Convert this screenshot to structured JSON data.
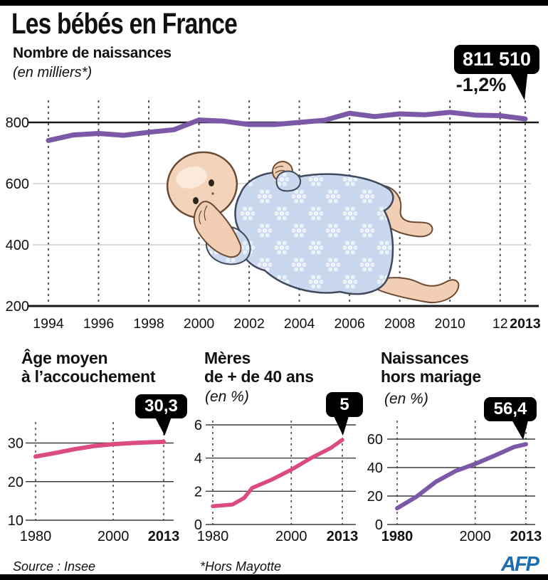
{
  "page": {
    "title": "Les bébés en France"
  },
  "colors": {
    "purple": "#7B59A6",
    "pink": "#DB4A80",
    "callout_bg": "#000000",
    "callout_text": "#FFFFFF",
    "afp_blue": "#1C6EB0"
  },
  "footer": {
    "source": "Source : Insee",
    "note": "*Hors Mayotte",
    "agency": "AFP"
  },
  "chart_data": [
    {
      "type": "line",
      "title": "Nombre de naissances",
      "subtitle": "(en milliers*)",
      "color": "#7B59A6",
      "grid": "vertical-dashed",
      "legend": "none",
      "x": [
        1994,
        1995,
        1996,
        1997,
        1998,
        1999,
        2000,
        2001,
        2002,
        2003,
        2004,
        2005,
        2006,
        2007,
        2008,
        2009,
        2010,
        2011,
        2012,
        2013
      ],
      "values": [
        741,
        759,
        764,
        758,
        768,
        776,
        808,
        804,
        793,
        793,
        800,
        807,
        830,
        819,
        828,
        825,
        833,
        824,
        822,
        811.5
      ],
      "ylim": [
        200,
        860
      ],
      "annotation": {
        "value": "811 510",
        "change": "-1,2%",
        "year": 2013
      },
      "y_ticks": [
        {
          "label": "200",
          "value": 200,
          "strong": true
        },
        {
          "label": "400",
          "value": 400,
          "strong": false
        },
        {
          "label": "600",
          "value": 600,
          "strong": false
        },
        {
          "label": "800",
          "value": 800,
          "strong": true
        }
      ],
      "x_ticks": [
        {
          "label": "1994",
          "year": 1994,
          "bold": false
        },
        {
          "label": "1996",
          "year": 1996,
          "bold": false
        },
        {
          "label": "1998",
          "year": 1998,
          "bold": false
        },
        {
          "label": "2000",
          "year": 2000,
          "bold": false
        },
        {
          "label": "2002",
          "year": 2002,
          "bold": false
        },
        {
          "label": "2004",
          "year": 2004,
          "bold": false
        },
        {
          "label": "2006",
          "year": 2006,
          "bold": false
        },
        {
          "label": "2008",
          "year": 2008,
          "bold": false
        },
        {
          "label": "2010",
          "year": 2010,
          "bold": false
        },
        {
          "label": "12",
          "year": 2012,
          "bold": false
        },
        {
          "label": "2013",
          "year": 2013,
          "bold": true
        }
      ]
    },
    {
      "type": "line",
      "title": "Âge moyen à l’accouchement",
      "title_lines": [
        "Âge moyen",
        "à l’accouchement"
      ],
      "subtitle": "",
      "color": "#DB4A80",
      "grid": "vertical-dashed",
      "callout": "30,3",
      "x": [
        1980,
        1985,
        1990,
        1995,
        2000,
        2005,
        2010,
        2013
      ],
      "values": [
        26.5,
        27.4,
        28.4,
        29.2,
        29.7,
        30.0,
        30.2,
        30.3
      ],
      "ylim": [
        10,
        33
      ],
      "y_ticks": [
        {
          "label": "10",
          "value": 10
        },
        {
          "label": "20",
          "value": 20
        },
        {
          "label": "30",
          "value": 30
        }
      ],
      "x_ticks": [
        {
          "label": "1980",
          "year": 1980,
          "bold": false
        },
        {
          "label": "2000",
          "year": 2000,
          "bold": false
        },
        {
          "label": "2013",
          "year": 2013,
          "bold": true
        }
      ]
    },
    {
      "type": "line",
      "title": "Mères de + de 40 ans (en %)",
      "title_lines": [
        "Mères",
        "de + de 40 ans"
      ],
      "subtitle": "(en %)",
      "color": "#DB4A80",
      "grid": "vertical-dashed",
      "callout": "5",
      "x": [
        1980,
        1985,
        1988,
        1990,
        1995,
        2000,
        2005,
        2010,
        2013
      ],
      "values": [
        1.1,
        1.2,
        1.6,
        2.2,
        2.7,
        3.3,
        4.0,
        4.6,
        5.1
      ],
      "ylim": [
        0,
        6.3
      ],
      "y_ticks": [
        {
          "label": "0",
          "value": 0
        },
        {
          "label": "2",
          "value": 2
        },
        {
          "label": "4",
          "value": 4
        },
        {
          "label": "6",
          "value": 6
        }
      ],
      "x_ticks": [
        {
          "label": "1980",
          "year": 1980,
          "bold": false
        },
        {
          "label": "2000",
          "year": 2000,
          "bold": false
        },
        {
          "label": "2013",
          "year": 2013,
          "bold": true
        }
      ]
    },
    {
      "type": "line",
      "title": "Naissances hors mariage (en %)",
      "title_lines": [
        "Naissances",
        "hors mariage"
      ],
      "subtitle": "(en %)",
      "color": "#7B59A6",
      "grid": "vertical-dashed",
      "callout": "56,4",
      "x": [
        1980,
        1985,
        1990,
        1995,
        2000,
        2005,
        2010,
        2013
      ],
      "values": [
        11.4,
        19.6,
        30.1,
        37.6,
        42.6,
        48.4,
        54.5,
        56.4
      ],
      "ylim": [
        0,
        65
      ],
      "y_ticks": [
        {
          "label": "0",
          "value": 0
        },
        {
          "label": "20",
          "value": 20
        },
        {
          "label": "40",
          "value": 40
        },
        {
          "label": "60",
          "value": 60
        }
      ],
      "x_ticks": [
        {
          "label": "1980",
          "year": 1980,
          "bold": true
        },
        {
          "label": "2000",
          "year": 2000,
          "bold": false
        },
        {
          "label": "2013",
          "year": 2013,
          "bold": true
        }
      ]
    }
  ]
}
